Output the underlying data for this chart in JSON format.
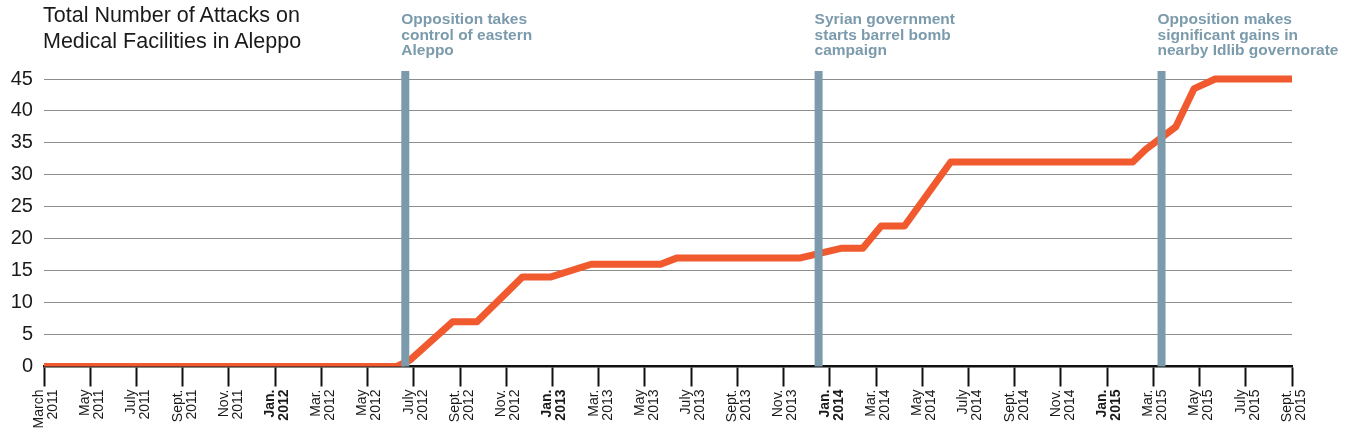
{
  "chart_data": {
    "type": "line",
    "title": "Total Number of Attacks on Medical Facilities in Aleppo",
    "x": [
      "2011-03-01",
      "2012-06-09",
      "2012-06-26",
      "2012-08-22",
      "2012-09-23",
      "2012-11-22",
      "2012-12-29",
      "2013-02-20",
      "2013-05-22",
      "2013-06-13",
      "2013-11-23",
      "2014-01-16",
      "2014-02-13",
      "2014-03-08",
      "2014-04-08",
      "2014-06-08",
      "2015-02-04",
      "2015-02-20",
      "2015-03-31",
      "2015-04-24",
      "2015-05-22",
      "2015-09-01"
    ],
    "values": [
      0,
      0,
      1,
      7,
      7,
      14,
      14,
      16,
      16,
      17,
      17,
      18.5,
      18.5,
      22,
      22,
      32,
      32,
      34,
      37.5,
      43.5,
      45,
      45
    ],
    "color": "#f05a2e",
    "xlim": [
      "2011-03",
      "2015-09"
    ],
    "xticks": [
      {
        "value": "2011-03",
        "label": "March 2011"
      },
      {
        "value": "2011-05",
        "label": "May 2011"
      },
      {
        "value": "2011-07",
        "label": "July 2011"
      },
      {
        "value": "2011-09",
        "label": "Sept. 2011"
      },
      {
        "value": "2011-11",
        "label": "Nov. 2011"
      },
      {
        "value": "2012-01",
        "label": "Jan. 2012"
      },
      {
        "value": "2012-03",
        "label": "Mar. 2012"
      },
      {
        "value": "2012-05",
        "label": "May 2012"
      },
      {
        "value": "2012-07",
        "label": "July 2012"
      },
      {
        "value": "2012-09",
        "label": "Sept. 2012"
      },
      {
        "value": "2012-11",
        "label": "Nov. 2012"
      },
      {
        "value": "2013-01",
        "label": "Jan. 2013"
      },
      {
        "value": "2013-03",
        "label": "Mar. 2013"
      },
      {
        "value": "2013-05",
        "label": "May 2013"
      },
      {
        "value": "2013-07",
        "label": "July 2013"
      },
      {
        "value": "2013-09",
        "label": "Sept. 2013"
      },
      {
        "value": "2013-11",
        "label": "Nov. 2013"
      },
      {
        "value": "2014-01",
        "label": "Jan. 2014"
      },
      {
        "value": "2014-03",
        "label": "Mar. 2014"
      },
      {
        "value": "2014-05",
        "label": "May 2014"
      },
      {
        "value": "2014-07",
        "label": "July 2014"
      },
      {
        "value": "2014-09",
        "label": "Sept. 2014"
      },
      {
        "value": "2014-11",
        "label": "Nov. 2014"
      },
      {
        "value": "2015-01",
        "label": "Jan. 2015"
      },
      {
        "value": "2015-03",
        "label": "Mar. 2015"
      },
      {
        "value": "2015-05",
        "label": "May 2015"
      },
      {
        "value": "2015-07",
        "label": "July 2015"
      },
      {
        "value": "2015-09",
        "label": "Sept. 2015"
      }
    ],
    "ylim": [
      0,
      45
    ],
    "yticks": [
      0,
      5,
      10,
      15,
      20,
      25,
      30,
      35,
      40,
      45
    ],
    "grid": "y",
    "ref_lines": [
      {
        "axis": "x",
        "value": "2012-06-20",
        "label": "Opposition takes\ncontrol of eastern\nAleppo",
        "color": "#7b9bac"
      },
      {
        "axis": "x",
        "value": "2013-12-17",
        "label": "Syrian government\nstarts barrel bomb\ncampaign",
        "color": "#7b9bac"
      },
      {
        "axis": "x",
        "value": "2015-03-12",
        "label": "Opposition makes\nsignificant gains in\nnearby Idlib governorate",
        "color": "#7b9bac"
      }
    ]
  }
}
